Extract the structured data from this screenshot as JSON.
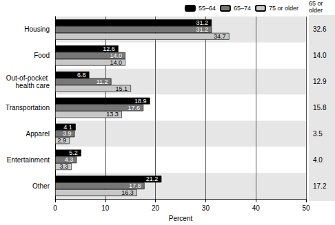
{
  "chart_data": {
    "type": "bar",
    "orientation": "horizontal",
    "categories": [
      "Housing",
      "Food",
      "Out-of-pocket health care",
      "Transportation",
      "Apparel",
      "Entertainment",
      "Other"
    ],
    "series": [
      {
        "name": "55–64",
        "color": "#000000",
        "values": [
          31.2,
          12.6,
          6.8,
          18.9,
          4.1,
          5.2,
          21.2
        ],
        "value_labels": [
          "31.2",
          "12.6",
          "6.8",
          "18.9",
          "4.1",
          "5.2",
          "21.2"
        ]
      },
      {
        "name": "65–74",
        "color": "#777777",
        "values": [
          31.2,
          14.0,
          11.2,
          17.6,
          3.9,
          4.3,
          17.8
        ],
        "value_labels": [
          "31.2",
          "14.0",
          "11.2",
          "17.6",
          "3.9",
          "4.3",
          "17.8"
        ]
      },
      {
        "name": "75 or older",
        "color": "#c8c8c8",
        "values": [
          34.7,
          14.0,
          15.1,
          13.3,
          2.9,
          3.3,
          16.3
        ],
        "value_labels": [
          "34.7",
          "14.0",
          "15.1",
          "13.3",
          "2.9",
          "3.3",
          "16.3"
        ]
      }
    ],
    "side_column": {
      "title": "65 or older",
      "values": [
        32.6,
        14.0,
        12.9,
        15.8,
        3.5,
        4.0,
        17.2
      ],
      "value_labels": [
        "32.6",
        "14.0",
        "12.9",
        "15.8",
        "3.5",
        "4.0",
        "17.2"
      ]
    },
    "xlabel": "Percent",
    "xlim": [
      0,
      50
    ],
    "xticks": [
      0,
      10,
      20,
      30,
      40,
      50
    ],
    "grid": true,
    "legend": "top-right",
    "data_labels": true
  }
}
